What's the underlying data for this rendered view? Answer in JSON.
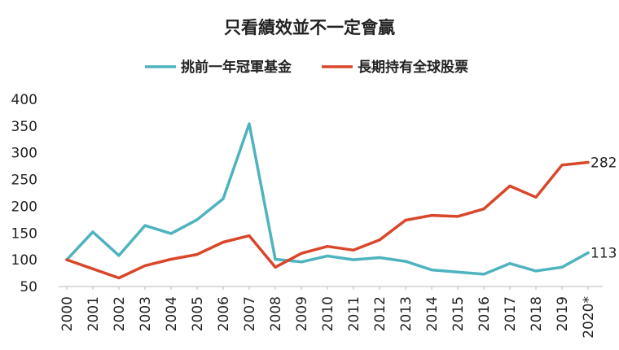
{
  "chart_data": {
    "type": "line",
    "title": "只看績效並不一定會贏",
    "x": [
      "2000",
      "2001",
      "2002",
      "2003",
      "2004",
      "2005",
      "2006",
      "2007",
      "2008",
      "2009",
      "2010",
      "2011",
      "2012",
      "2013",
      "2014",
      "2015",
      "2016",
      "2017",
      "2018",
      "2019",
      "2020*"
    ],
    "series": [
      {
        "name": "挑前一年冠軍基金",
        "color": "#4fb3bf",
        "values": [
          100,
          152,
          108,
          164,
          149,
          175,
          214,
          354,
          101,
          96,
          107,
          100,
          104,
          97,
          81,
          77,
          73,
          93,
          79,
          86,
          113
        ],
        "end_label": "113"
      },
      {
        "name": "長期持有全球股票",
        "color": "#d9472b",
        "values": [
          100,
          83,
          66,
          89,
          101,
          110,
          133,
          145,
          86,
          112,
          125,
          118,
          137,
          174,
          183,
          181,
          195,
          238,
          217,
          277,
          282
        ],
        "end_label": "282"
      }
    ],
    "ylim": [
      50,
      400
    ],
    "yticks": [
      50,
      100,
      150,
      200,
      250,
      300,
      350,
      400
    ],
    "xlabel": "",
    "ylabel": "",
    "legend_position": "top",
    "grid": false
  }
}
